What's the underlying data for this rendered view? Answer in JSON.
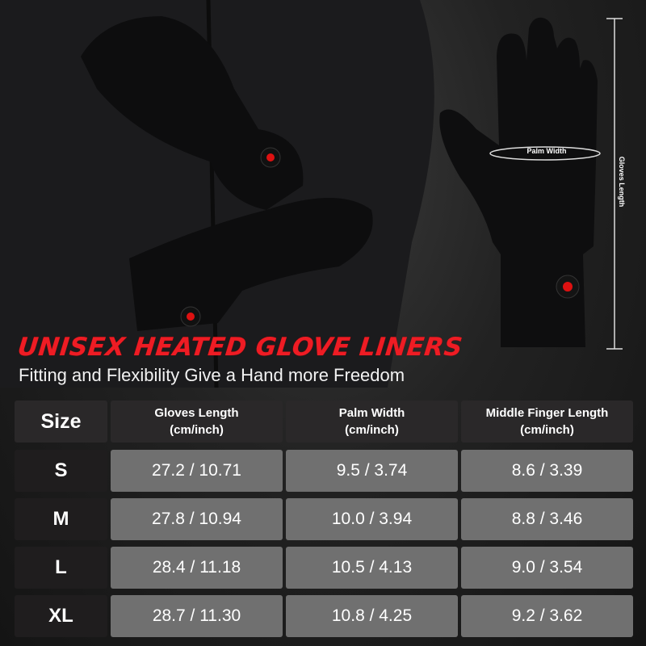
{
  "hero": {
    "title": "UNISEX HEATED GLOVE LINERS",
    "subtitle": "Fitting and Flexibility Give a Hand more Freedom",
    "diagram_labels": {
      "palm_width": "Palm Width",
      "gloves_length": "Gloves Length"
    }
  },
  "size_table": {
    "headers": [
      {
        "line1": "Size",
        "line2": ""
      },
      {
        "line1": "Gloves Length",
        "line2": "(cm/inch)"
      },
      {
        "line1": "Palm Width",
        "line2": "(cm/inch)"
      },
      {
        "line1": "Middle Finger Length",
        "line2": "(cm/inch)"
      }
    ],
    "rows": [
      {
        "size": "S",
        "length": "27.2 / 10.71",
        "palm": "9.5 / 3.74",
        "finger": "8.6 / 3.39"
      },
      {
        "size": "M",
        "length": "27.8 / 10.94",
        "palm": "10.0 / 3.94",
        "finger": "8.8 / 3.46"
      },
      {
        "size": "L",
        "length": "28.4 / 11.18",
        "palm": "10.5 / 4.13",
        "finger": "9.0 / 3.54"
      },
      {
        "size": "XL",
        "length": "28.7 / 11.30",
        "palm": "10.8 / 4.25",
        "finger": "9.2 / 3.62"
      }
    ]
  },
  "colors": {
    "accent_red": "#ee1c24",
    "value_cell": "#707070",
    "header_cell": "#2a2829"
  }
}
